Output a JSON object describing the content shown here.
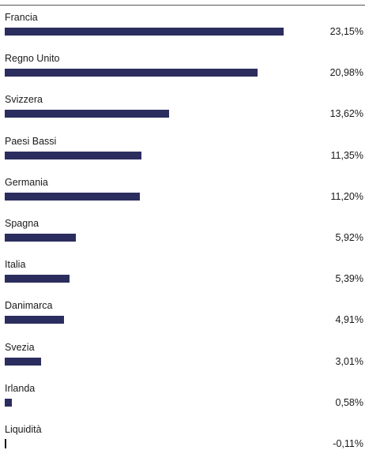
{
  "chart_data": {
    "type": "bar",
    "orientation": "horizontal",
    "categories": [
      "Francia",
      "Regno Unito",
      "Svizzera",
      "Paesi Bassi",
      "Germania",
      "Spagna",
      "Italia",
      "Danimarca",
      "Svezia",
      "Irlanda",
      "Liquidità"
    ],
    "values": [
      23.15,
      20.98,
      13.62,
      11.35,
      11.2,
      5.92,
      5.39,
      4.91,
      3.01,
      0.58,
      -0.11
    ],
    "value_labels": [
      "23,15%",
      "20,98%",
      "13,62%",
      "11,35%",
      "11,20%",
      "5,92%",
      "5,39%",
      "4,91%",
      "3,01%",
      "0,58%",
      "-0,11%"
    ],
    "unit": "%",
    "bar_color": "#2b2d5e",
    "grid": false,
    "legend": "none"
  }
}
